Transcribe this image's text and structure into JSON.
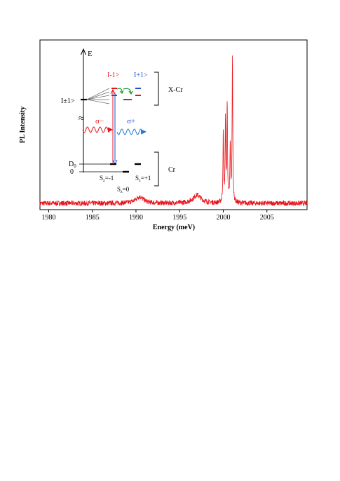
{
  "chart_data": {
    "type": "line",
    "title": "",
    "xlabel": "Energy (meV)",
    "ylabel": "PL Intensity",
    "xlim": [
      1979,
      2009.6
    ],
    "ylim": [
      0,
      1
    ],
    "grid": false,
    "x_ticks": [
      1980,
      1985,
      1990,
      1995,
      2000,
      2005
    ],
    "x_tick_labels": [
      "1980",
      "1985",
      "1990",
      "1995",
      "2000",
      "2005"
    ],
    "series": [
      {
        "color": "#e8141b",
        "baseline": 0.03,
        "features": [
          {
            "x": 1990.4,
            "y": 0.07
          },
          {
            "x": 1997.0,
            "y": 0.08
          },
          {
            "x": 2000.0,
            "y": 0.45
          },
          {
            "x": 2000.25,
            "y": 0.52
          },
          {
            "x": 2000.45,
            "y": 0.62
          },
          {
            "x": 2000.8,
            "y": 0.38
          },
          {
            "x": 2001.05,
            "y": 0.92
          }
        ]
      }
    ]
  },
  "inset": {
    "energy_axis_label": "E",
    "state_pm1_label": "I±1>",
    "state_minus1_label": "I-1>",
    "state_plus1_label": "I+1>",
    "xcr_label": "X-Cr",
    "cr_label": "Cr",
    "sigma_minus_label": "σ−",
    "sigma_plus_label": "σ+",
    "d0_label": "D",
    "d0_sub": "0",
    "zero_label": "0",
    "sz_minus_label": "S",
    "sz_minus_sub": "z",
    "sz_minus_value": "=-1",
    "sz_zero_label": "S",
    "sz_zero_sub": "z",
    "sz_zero_value": "=0",
    "sz_plus_label": "S",
    "sz_plus_sub": "z",
    "sz_plus_value": "=+1",
    "break_symbol": "≈",
    "colors": {
      "red": "#e8141b",
      "blue": "#1f4fd8",
      "green": "#1e9a2e",
      "black": "#000000"
    }
  }
}
